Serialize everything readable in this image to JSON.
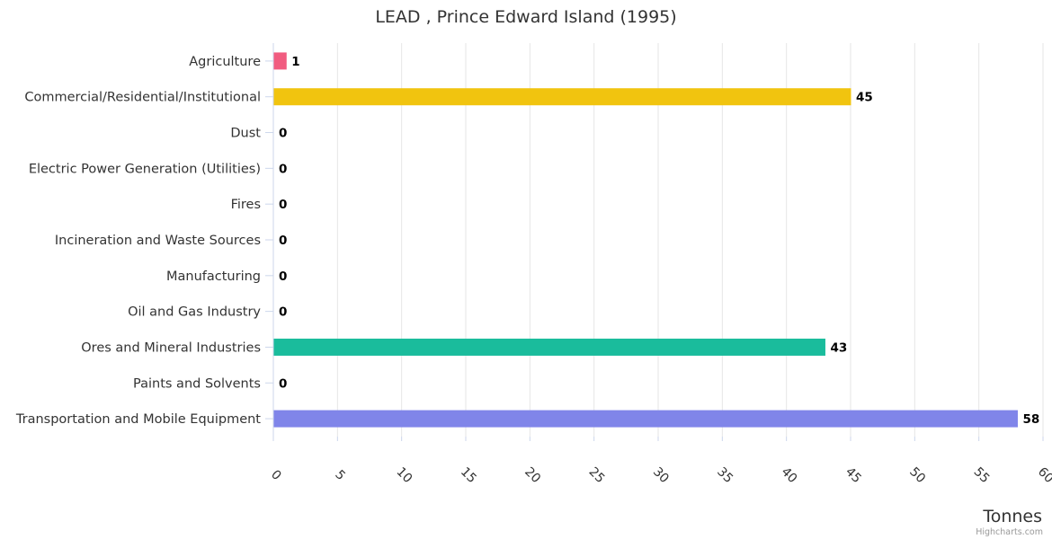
{
  "chart_data": {
    "type": "bar",
    "orientation": "horizontal",
    "title": "LEAD , Prince Edward Island (1995)",
    "xlabel": "Tonnes",
    "ylabel": "",
    "categories": [
      "Agriculture",
      "Commercial/Residential/Institutional",
      "Dust",
      "Electric Power Generation (Utilities)",
      "Fires",
      "Incineration and Waste Sources",
      "Manufacturing",
      "Oil and Gas Industry",
      "Ores and Mineral Industries",
      "Paints and Solvents",
      "Transportation and Mobile Equipment"
    ],
    "values": [
      1,
      45,
      0,
      0,
      0,
      0,
      0,
      0,
      43,
      0,
      58
    ],
    "data_labels": [
      "1",
      "45",
      "0",
      "0",
      "0",
      "0",
      "0",
      "0",
      "43",
      "0",
      "58"
    ],
    "bar_colors": [
      "#f15c80",
      "#f1c40f",
      "#2b908f",
      "#7cb5ec",
      "#434348",
      "#90ed7d",
      "#f7a35c",
      "#8085e9",
      "#1abc9c",
      "#e4d354",
      "#8085e9"
    ],
    "xlim": [
      0,
      60
    ],
    "ticks": [
      0,
      5,
      10,
      15,
      20,
      25,
      30,
      35,
      40,
      45,
      50,
      55,
      60
    ],
    "tick_labels": [
      "0",
      "5",
      "10",
      "15",
      "20",
      "25",
      "30",
      "35",
      "40",
      "45",
      "50",
      "55",
      "60"
    ],
    "grid": true,
    "legend": "none"
  },
  "credits": "Highcharts.com",
  "colors": {
    "grid": "#e6e6e6",
    "text": "#333333",
    "credits": "#999999"
  }
}
